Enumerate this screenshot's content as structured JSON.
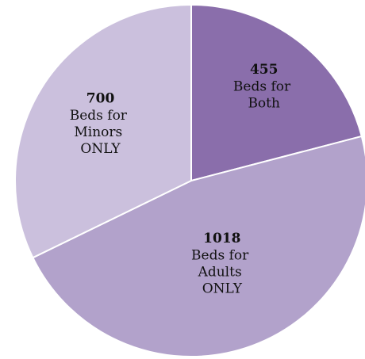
{
  "chart_data": {
    "type": "pie",
    "categories": [
      "Beds for Both",
      "Beds for Adults ONLY",
      "Beds for Minors ONLY"
    ],
    "values": [
      455,
      1018,
      700
    ],
    "colors": [
      "#8a6eab",
      "#b2a2cb",
      "#cbc0dd"
    ]
  }
}
